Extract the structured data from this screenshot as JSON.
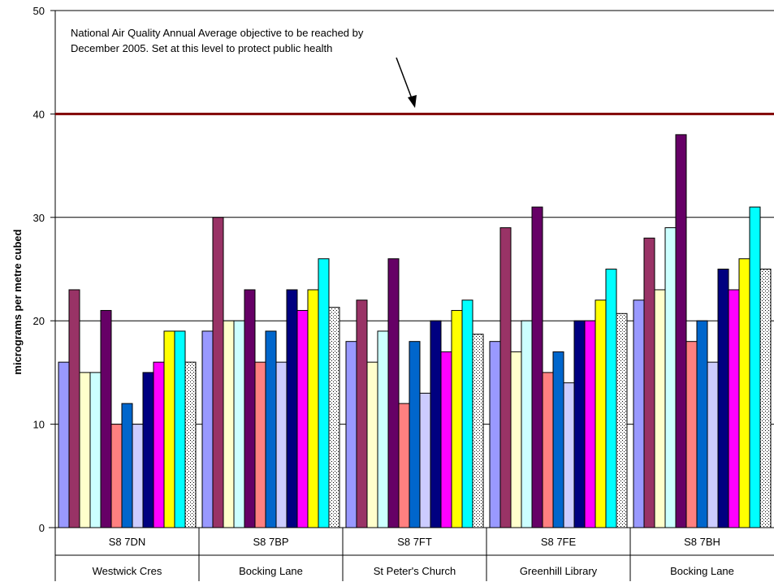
{
  "chart_data": {
    "type": "bar",
    "ylabel": "micrograms per metre cubed",
    "ylim": [
      0,
      50
    ],
    "yticks": [
      "0",
      "10",
      "20",
      "30",
      "40",
      "50"
    ],
    "grid": true,
    "categories": [
      {
        "code": "S8 7DN",
        "name": "Westwick Cres"
      },
      {
        "code": "S8 7BP",
        "name": "Bocking Lane"
      },
      {
        "code": "S8 7FT",
        "name": "St Peter's Church"
      },
      {
        "code": "S8 7FE",
        "name": "Greenhill Library"
      },
      {
        "code": "S8 7BH",
        "name": "Bocking Lane"
      }
    ],
    "bar_values": [
      [
        16,
        23,
        15,
        15,
        21,
        10,
        12,
        10,
        15,
        16,
        19,
        19,
        16
      ],
      [
        19,
        30,
        20,
        20,
        23,
        16,
        19,
        16,
        23,
        21,
        23,
        26,
        21.3
      ],
      [
        18,
        22,
        16,
        19,
        26,
        12,
        18,
        13,
        20,
        17,
        21,
        22,
        18.7
      ],
      [
        18,
        29,
        17,
        20,
        31,
        15,
        17,
        14,
        20,
        20,
        22,
        25,
        20.7
      ],
      [
        22,
        28,
        23,
        29,
        38,
        18,
        20,
        16,
        25,
        23,
        26,
        31,
        25
      ]
    ],
    "bar_colors": [
      "#9999ff",
      "#993366",
      "#ffffcc",
      "#ccffff",
      "#660066",
      "#ff8080",
      "#0066cc",
      "#ccccff",
      "#000080",
      "#ff00ff",
      "#ffff00",
      "#00ffff",
      "#ffffff"
    ],
    "last_bar_pattern": "dotted",
    "objective_line": {
      "value": 40,
      "color": "#800000"
    },
    "annotation": {
      "line1": "National Air Quality Annual Average objective to be reached by",
      "line2": "December 2005. Set at this level to protect public health"
    }
  }
}
